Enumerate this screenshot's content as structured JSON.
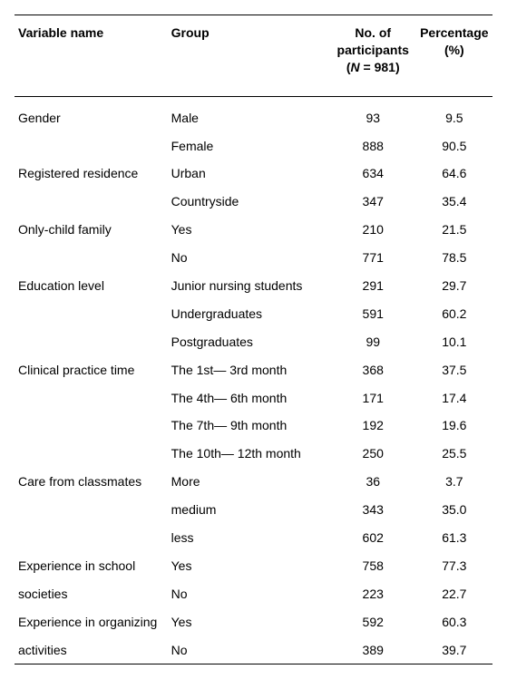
{
  "table": {
    "type": "table",
    "background_color": "#ffffff",
    "text_color": "#000000",
    "border_color": "#000000",
    "font_family": "Arial, Helvetica, sans-serif",
    "header_fontsize": 14,
    "body_fontsize": 14,
    "header_fontweight": "bold",
    "body_fontweight": "normal",
    "col_widths_pct": [
      32,
      34,
      18,
      16
    ],
    "columns": {
      "variable": "Variable name",
      "group": "Group",
      "n_line1": "No. of",
      "n_line2": "participants",
      "n_line3_pre": "(",
      "n_line3_ital": "N",
      "n_line3_post": " = 981)",
      "pct_line1": "Percentage",
      "pct_line2": "(%)"
    },
    "rows": [
      {
        "variable": "Gender",
        "group": "Male",
        "n": "93",
        "pct": "9.5",
        "first": true
      },
      {
        "variable": "",
        "group": "Female",
        "n": "888",
        "pct": "90.5"
      },
      {
        "variable": "Registered residence",
        "group": "Urban",
        "n": "634",
        "pct": "64.6"
      },
      {
        "variable": "",
        "group": "Countryside",
        "n": "347",
        "pct": "35.4"
      },
      {
        "variable": "Only-child family",
        "group": "Yes",
        "n": "210",
        "pct": "21.5"
      },
      {
        "variable": "",
        "group": "No",
        "n": "771",
        "pct": "78.5"
      },
      {
        "variable": "Education level",
        "group": "Junior nursing students",
        "n": "291",
        "pct": "29.7"
      },
      {
        "variable": "",
        "group": "Undergraduates",
        "n": "591",
        "pct": "60.2"
      },
      {
        "variable": "",
        "group": "Postgraduates",
        "n": "99",
        "pct": "10.1"
      },
      {
        "variable": "Clinical practice time",
        "group": "The 1st— 3rd month",
        "n": "368",
        "pct": "37.5"
      },
      {
        "variable": "",
        "group": "The 4th— 6th month",
        "n": "171",
        "pct": "17.4"
      },
      {
        "variable": "",
        "group": "The 7th— 9th month",
        "n": "192",
        "pct": "19.6"
      },
      {
        "variable": "",
        "group": "The 10th— 12th month",
        "n": "250",
        "pct": "25.5"
      },
      {
        "variable": "Care from classmates",
        "group": "More",
        "n": "36",
        "pct": "3.7"
      },
      {
        "variable": "",
        "group": "medium",
        "n": "343",
        "pct": "35.0"
      },
      {
        "variable": "",
        "group": "less",
        "n": "602",
        "pct": "61.3"
      },
      {
        "variable": "Experience in school",
        "group": "Yes",
        "n": "758",
        "pct": "77.3"
      },
      {
        "variable": "societies",
        "group": "No",
        "n": "223",
        "pct": "22.7"
      },
      {
        "variable": "Experience in organizing",
        "group": "Yes",
        "n": "592",
        "pct": "60.3"
      },
      {
        "variable": "activities",
        "group": "No",
        "n": "389",
        "pct": "39.7"
      }
    ]
  }
}
